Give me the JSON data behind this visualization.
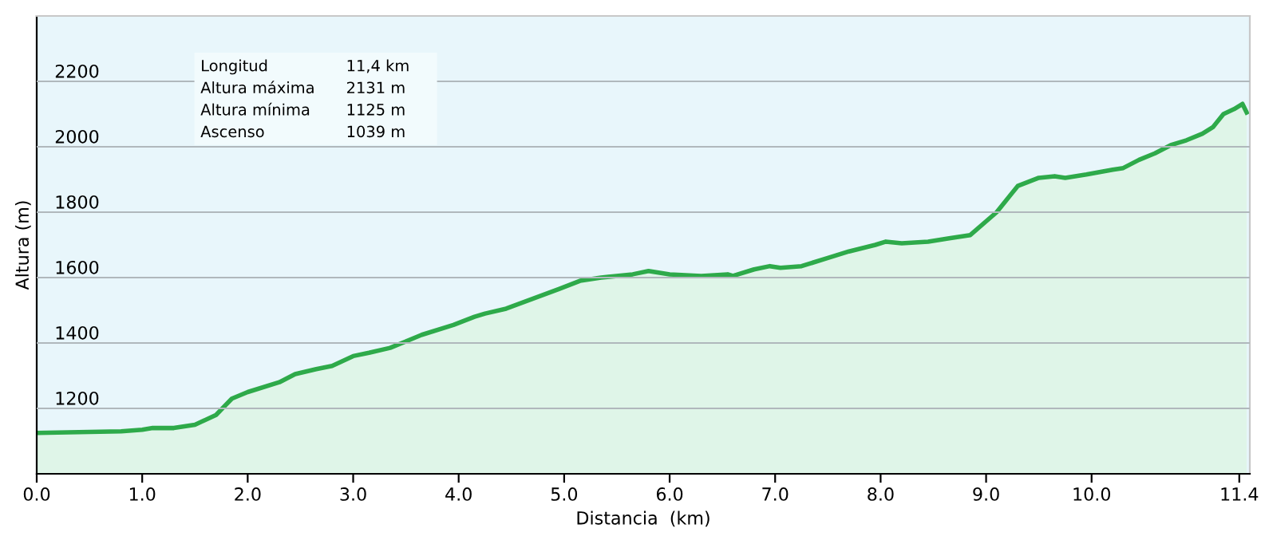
{
  "chart_data": {
    "type": "area",
    "xlabel": "Distancia  (km)",
    "ylabel": "Altura (m)",
    "x": [
      0,
      0.8,
      1.0,
      1.1,
      1.3,
      1.5,
      1.7,
      1.85,
      2.0,
      2.3,
      2.45,
      2.65,
      2.8,
      3.0,
      3.15,
      3.35,
      3.5,
      3.65,
      3.95,
      4.15,
      4.25,
      4.45,
      4.7,
      4.95,
      5.15,
      5.35,
      5.65,
      5.8,
      6.0,
      6.3,
      6.55,
      6.6,
      6.8,
      6.95,
      7.05,
      7.25,
      7.5,
      7.7,
      7.95,
      8.05,
      8.2,
      8.45,
      8.65,
      8.85,
      9.1,
      9.3,
      9.5,
      9.65,
      9.75,
      9.95,
      10.2,
      10.3,
      10.45,
      10.6,
      10.75,
      10.9,
      11.05,
      11.15,
      11.25,
      11.35,
      11.43,
      11.47
    ],
    "series": [
      {
        "color": "#2eaa4a",
        "values": [
          1125,
          1130,
          1135,
          1140,
          1140,
          1150,
          1180,
          1230,
          1250,
          1280,
          1305,
          1320,
          1330,
          1360,
          1370,
          1385,
          1405,
          1425,
          1455,
          1480,
          1490,
          1505,
          1535,
          1565,
          1590,
          1600,
          1610,
          1620,
          1610,
          1605,
          1610,
          1605,
          1625,
          1635,
          1630,
          1635,
          1660,
          1680,
          1700,
          1710,
          1705,
          1710,
          1720,
          1730,
          1800,
          1880,
          1905,
          1910,
          1905,
          1915,
          1930,
          1935,
          1960,
          1980,
          2005,
          2020,
          2040,
          2060,
          2100,
          2115,
          2131,
          2105
        ]
      }
    ],
    "xlim": [
      0,
      11.5
    ],
    "xticks": [
      {
        "value": 0,
        "label": "0.0"
      },
      {
        "value": 1,
        "label": "1.0"
      },
      {
        "value": 2,
        "label": "2.0"
      },
      {
        "value": 3,
        "label": "3.0"
      },
      {
        "value": 4,
        "label": "4.0"
      },
      {
        "value": 5,
        "label": "5.0"
      },
      {
        "value": 6,
        "label": "6.0"
      },
      {
        "value": 7,
        "label": "7.0"
      },
      {
        "value": 8,
        "label": "8.0"
      },
      {
        "value": 9,
        "label": "9.0"
      },
      {
        "value": 10,
        "label": "10.0"
      },
      {
        "value": 11.4,
        "label": "11.4"
      }
    ],
    "ylim": [
      1000,
      2400
    ],
    "yticks": [
      1200,
      1400,
      1600,
      1800,
      2000,
      2200
    ],
    "grid": "y",
    "annotations": [
      "Longitud",
      "11,4 km",
      "Altura máxima",
      "2131 m",
      "Altura mínima",
      "1125 m",
      "Ascenso",
      "1039 m"
    ]
  }
}
